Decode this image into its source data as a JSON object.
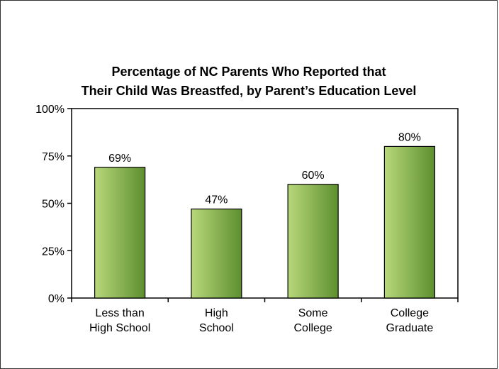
{
  "chart_data": {
    "type": "bar",
    "title_lines": [
      "Percentage of NC Parents Who Reported that",
      "Their Child Was Breastfed, by Parent’s Education Level"
    ],
    "categories": [
      [
        "Less than",
        "High School"
      ],
      [
        "High",
        "School"
      ],
      [
        "Some",
        "College"
      ],
      [
        "College",
        "Graduate"
      ]
    ],
    "values": [
      69,
      47,
      60,
      80
    ],
    "data_labels": [
      "69%",
      "47%",
      "60%",
      "80%"
    ],
    "y_ticks": [
      "0%",
      "25%",
      "50%",
      "75%",
      "100%"
    ],
    "ylim": [
      0,
      100
    ],
    "y_step": 25,
    "grid": false,
    "legend": "none",
    "bar_color_light": "#b8d87a",
    "bar_color_dark": "#5d8f2f"
  }
}
